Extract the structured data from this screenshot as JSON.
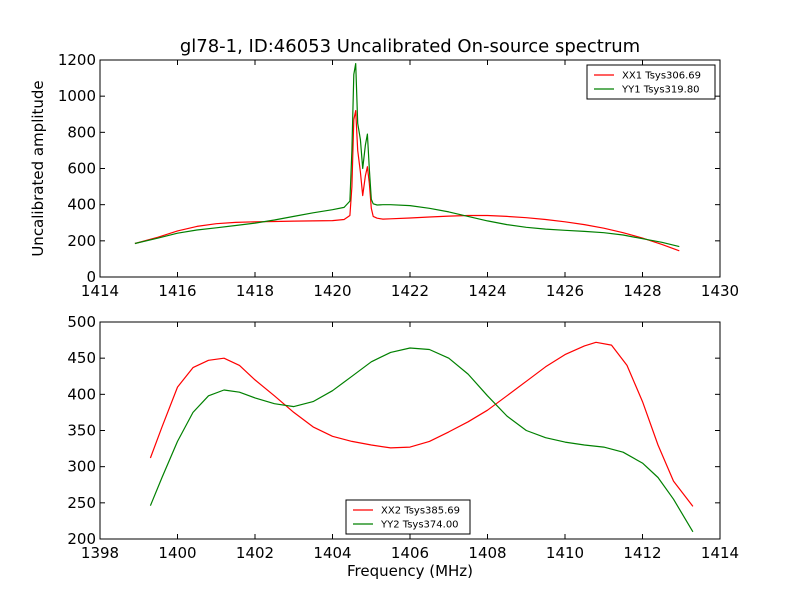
{
  "chart_data": [
    {
      "type": "line",
      "title": "gl78-1, ID:46053 Uncalibrated On-source spectrum",
      "xlabel": "",
      "ylabel": "Uncalibrated amplitude",
      "xlim": [
        1414,
        1430
      ],
      "ylim": [
        0,
        1200
      ],
      "xticks": [
        "1414",
        "1416",
        "1418",
        "1420",
        "1422",
        "1424",
        "1426",
        "1428",
        "1430"
      ],
      "yticks": [
        "0",
        "200",
        "400",
        "600",
        "800",
        "1000",
        "1200"
      ],
      "grid": false,
      "legend_position": "top-right",
      "series": [
        {
          "name": "XX1 Tsys306.69",
          "color": "#ff0000",
          "x": [
            1414.9,
            1415.5,
            1416.0,
            1416.5,
            1417.0,
            1417.5,
            1418.0,
            1418.5,
            1419.0,
            1419.5,
            1420.0,
            1420.3,
            1420.45,
            1420.5,
            1420.55,
            1420.6,
            1420.65,
            1420.72,
            1420.78,
            1420.85,
            1420.9,
            1420.95,
            1421.0,
            1421.05,
            1421.15,
            1421.3,
            1421.5,
            1422.0,
            1422.5,
            1423.0,
            1423.5,
            1424.0,
            1424.5,
            1425.0,
            1425.5,
            1426.0,
            1426.5,
            1427.0,
            1427.5,
            1428.0,
            1428.5,
            1428.95
          ],
          "y": [
            185,
            220,
            255,
            280,
            295,
            302,
            305,
            307,
            309,
            310,
            312,
            318,
            340,
            500,
            870,
            920,
            700,
            580,
            450,
            560,
            610,
            520,
            380,
            335,
            325,
            320,
            322,
            326,
            332,
            337,
            340,
            340,
            335,
            328,
            318,
            305,
            290,
            270,
            245,
            215,
            180,
            145
          ]
        },
        {
          "name": "YY1 Tsys319.80",
          "color": "#008000",
          "x": [
            1414.9,
            1415.5,
            1416.0,
            1416.5,
            1417.0,
            1417.5,
            1418.0,
            1418.5,
            1419.0,
            1419.5,
            1420.0,
            1420.3,
            1420.45,
            1420.5,
            1420.55,
            1420.6,
            1420.65,
            1420.72,
            1420.78,
            1420.85,
            1420.9,
            1420.95,
            1421.0,
            1421.05,
            1421.15,
            1421.3,
            1421.5,
            1422.0,
            1422.5,
            1423.0,
            1423.5,
            1424.0,
            1424.5,
            1425.0,
            1425.5,
            1426.0,
            1426.5,
            1427.0,
            1427.5,
            1428.0,
            1428.5,
            1428.95
          ],
          "y": [
            185,
            215,
            242,
            260,
            272,
            285,
            298,
            315,
            335,
            355,
            372,
            385,
            420,
            700,
            1120,
            1180,
            850,
            760,
            600,
            730,
            790,
            600,
            430,
            405,
            398,
            400,
            400,
            395,
            380,
            360,
            335,
            310,
            290,
            275,
            265,
            258,
            252,
            245,
            232,
            212,
            192,
            168
          ]
        }
      ]
    },
    {
      "type": "line",
      "title": "",
      "xlabel": "Frequency (MHz)",
      "ylabel": "",
      "xlim": [
        1398,
        1414
      ],
      "ylim": [
        200,
        500
      ],
      "xticks": [
        "1398",
        "1400",
        "1402",
        "1404",
        "1406",
        "1408",
        "1410",
        "1412",
        "1414"
      ],
      "yticks": [
        "200",
        "250",
        "300",
        "350",
        "400",
        "450",
        "500"
      ],
      "grid": false,
      "legend_position": "bottom-center",
      "series": [
        {
          "name": "XX2 Tsys385.69",
          "color": "#ff0000",
          "x": [
            1399.3,
            1399.6,
            1400.0,
            1400.4,
            1400.8,
            1401.2,
            1401.6,
            1402.0,
            1402.5,
            1403.0,
            1403.5,
            1404.0,
            1404.5,
            1405.0,
            1405.5,
            1406.0,
            1406.5,
            1407.0,
            1407.5,
            1408.0,
            1408.5,
            1409.0,
            1409.5,
            1410.0,
            1410.5,
            1410.8,
            1411.2,
            1411.6,
            1412.0,
            1412.4,
            1412.8,
            1413.3
          ],
          "y": [
            312,
            355,
            410,
            437,
            447,
            450,
            440,
            420,
            398,
            375,
            355,
            342,
            335,
            330,
            326,
            327,
            335,
            348,
            362,
            378,
            398,
            418,
            438,
            455,
            467,
            472,
            468,
            440,
            390,
            330,
            280,
            245
          ]
        },
        {
          "name": "YY2 Tsys374.00",
          "color": "#008000",
          "x": [
            1399.3,
            1399.6,
            1400.0,
            1400.4,
            1400.8,
            1401.2,
            1401.6,
            1402.0,
            1402.5,
            1403.0,
            1403.5,
            1404.0,
            1404.5,
            1405.0,
            1405.5,
            1406.0,
            1406.5,
            1407.0,
            1407.5,
            1408.0,
            1408.5,
            1409.0,
            1409.5,
            1410.0,
            1410.5,
            1411.0,
            1411.5,
            1412.0,
            1412.4,
            1412.8,
            1413.3
          ],
          "y": [
            246,
            285,
            335,
            375,
            398,
            406,
            403,
            395,
            387,
            383,
            390,
            405,
            425,
            445,
            458,
            464,
            462,
            450,
            428,
            398,
            370,
            350,
            340,
            334,
            330,
            327,
            320,
            305,
            285,
            255,
            210
          ]
        }
      ]
    }
  ]
}
